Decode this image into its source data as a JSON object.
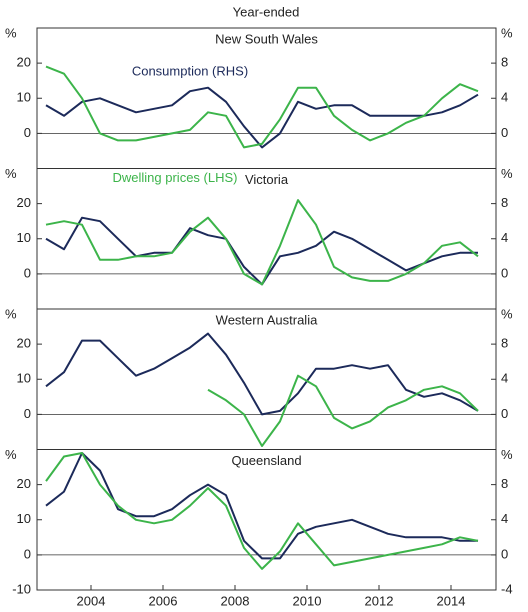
{
  "chart_data": [
    {
      "type": "line",
      "subtitle": "Year-ended",
      "title": "New South Wales",
      "x": [
        2002.75,
        2003.25,
        2003.75,
        2004.25,
        2004.75,
        2005.25,
        2005.75,
        2006.25,
        2006.75,
        2007.25,
        2007.75,
        2008.25,
        2008.75,
        2009.25,
        2009.75,
        2010.25,
        2010.75,
        2011.25,
        2011.75,
        2012.25,
        2012.75,
        2013.25,
        2013.75,
        2014.25,
        2014.75
      ],
      "xlim": [
        2002.5,
        2015.25
      ],
      "ylim": [
        -10,
        30
      ],
      "yticks": [
        0,
        10,
        20
      ],
      "y2lim": [
        -4,
        12
      ],
      "y2ticks": [
        0,
        4,
        8
      ],
      "unit_left": "%",
      "unit_right": "%",
      "series": [
        {
          "name": "Consumption (RHS)",
          "color": "#1c2a5a",
          "axis": "y2",
          "values": [
            3.2,
            2,
            3.6,
            4,
            3.2,
            2.4,
            2.8,
            3.2,
            4.8,
            5.2,
            3.6,
            0.8,
            -1.6,
            0,
            3.6,
            2.8,
            3.2,
            3.2,
            2,
            2,
            2,
            2,
            2.4,
            3.2,
            4.4
          ]
        },
        {
          "name": "Dwelling prices (LHS)",
          "color": "#3cb44a",
          "values": [
            19,
            17,
            10,
            0,
            -2,
            -2,
            -1,
            0,
            1,
            6,
            5,
            -4,
            -3,
            4,
            13,
            13,
            5,
            1,
            -2,
            0,
            3,
            5,
            10,
            14,
            12
          ]
        }
      ]
    },
    {
      "type": "line",
      "title": "Victoria",
      "x": [
        2002.75,
        2003.25,
        2003.75,
        2004.25,
        2004.75,
        2005.25,
        2005.75,
        2006.25,
        2006.75,
        2007.25,
        2007.75,
        2008.25,
        2008.75,
        2009.25,
        2009.75,
        2010.25,
        2010.75,
        2011.25,
        2011.75,
        2012.25,
        2012.75,
        2013.25,
        2013.75,
        2014.25,
        2014.75
      ],
      "xlim": [
        2002.5,
        2015.25
      ],
      "ylim": [
        -10,
        30
      ],
      "yticks": [
        0,
        10,
        20
      ],
      "y2lim": [
        -4,
        12
      ],
      "y2ticks": [
        0,
        4,
        8
      ],
      "unit_left": "%",
      "unit_right": "%",
      "series": [
        {
          "color": "#1c2a5a",
          "axis": "y2",
          "values": [
            4,
            2.8,
            6.4,
            6,
            4,
            2,
            2.4,
            2.4,
            5.2,
            4.4,
            4,
            0.8,
            -1.2,
            2,
            2.4,
            3.2,
            4.8,
            4,
            2.8,
            1.6,
            0.4,
            1.2,
            2,
            2.4,
            2.4
          ]
        },
        {
          "color": "#3cb44a",
          "values": [
            14,
            15,
            14,
            4,
            4,
            5,
            5,
            6,
            12,
            16,
            10,
            0,
            -3,
            8,
            21,
            14,
            2,
            -1,
            -2,
            -2,
            0,
            3,
            8,
            9,
            5
          ]
        }
      ]
    },
    {
      "type": "line",
      "title": "Western Australia",
      "x": [
        2002.75,
        2003.25,
        2003.75,
        2004.25,
        2004.75,
        2005.25,
        2005.75,
        2006.25,
        2006.75,
        2007.25,
        2007.75,
        2008.25,
        2008.75,
        2009.25,
        2009.75,
        2010.25,
        2010.75,
        2011.25,
        2011.75,
        2012.25,
        2012.75,
        2013.25,
        2013.75,
        2014.25,
        2014.75
      ],
      "xlim": [
        2002.5,
        2015.25
      ],
      "ylim": [
        -10,
        30
      ],
      "yticks": [
        0,
        10,
        20
      ],
      "y2lim": [
        -4,
        12
      ],
      "y2ticks": [
        0,
        4,
        8
      ],
      "unit_left": "%",
      "unit_right": "%",
      "series": [
        {
          "color": "#1c2a5a",
          "axis": "y2",
          "values": [
            3.2,
            4.8,
            8.4,
            8.4,
            6.4,
            4.4,
            5.2,
            6.4,
            7.6,
            9.2,
            6.8,
            3.6,
            0,
            0.4,
            2.4,
            5.2,
            5.2,
            5.6,
            5.2,
            5.6,
            2.8,
            2,
            2.4,
            1.6,
            0.4
          ]
        },
        {
          "color": "#3cb44a",
          "values": [
            null,
            null,
            null,
            null,
            null,
            null,
            null,
            null,
            null,
            7,
            4,
            0,
            -9,
            -2,
            11,
            8,
            -1,
            -4,
            -2,
            2,
            4,
            7,
            8,
            6,
            1
          ]
        }
      ]
    },
    {
      "type": "line",
      "title": "Queensland",
      "x": [
        2002.75,
        2003.25,
        2003.75,
        2004.25,
        2004.75,
        2005.25,
        2005.75,
        2006.25,
        2006.75,
        2007.25,
        2007.75,
        2008.25,
        2008.75,
        2009.25,
        2009.75,
        2010.25,
        2010.75,
        2011.25,
        2011.75,
        2012.25,
        2012.75,
        2013.25,
        2013.75,
        2014.25,
        2014.75
      ],
      "xlim": [
        2002.5,
        2015.25
      ],
      "xticks": [
        2004,
        2006,
        2008,
        2010,
        2012,
        2014
      ],
      "ylim": [
        -10,
        30
      ],
      "yticks": [
        -10,
        0,
        10,
        20
      ],
      "y2lim": [
        -4,
        12
      ],
      "y2ticks": [
        -4,
        0,
        4,
        8
      ],
      "unit_left": "%",
      "unit_right": "%",
      "series": [
        {
          "color": "#1c2a5a",
          "axis": "y2",
          "values": [
            5.6,
            7.2,
            11.6,
            9.6,
            5.2,
            4.4,
            4.4,
            5.2,
            6.8,
            8,
            6.8,
            1.6,
            -0.4,
            -0.4,
            2.4,
            3.2,
            3.6,
            4,
            3.2,
            2.4,
            2,
            2,
            2,
            1.6,
            1.6
          ]
        },
        {
          "color": "#3cb44a",
          "values": [
            21,
            28,
            29,
            20,
            14,
            10,
            9,
            10,
            14,
            19,
            14,
            2,
            -4,
            1,
            9,
            3,
            -3,
            -2,
            -1,
            0,
            1,
            2,
            3,
            5,
            4
          ]
        }
      ]
    }
  ]
}
